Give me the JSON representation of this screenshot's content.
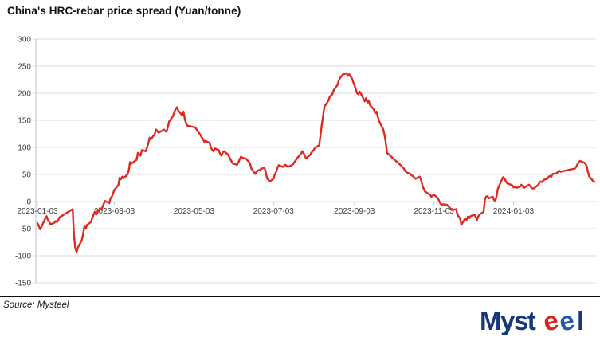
{
  "footer": {
    "source": "Source: Mysteel",
    "logo": {
      "prefix": "Myst",
      "e1": "e",
      "e2": "e",
      "suffix": "l"
    }
  },
  "colors": {
    "line": "#e02820",
    "grid": "#dcdcdc",
    "axis": "#c2c2c2",
    "tick_text": "#3f3f3f",
    "title_text": "#111111",
    "rule": "#0a0a0a",
    "logo_navy": "#16377e",
    "logo_blue": "#1f5aa8",
    "logo_red": "#d7261d"
  },
  "chart_data": {
    "type": "line",
    "title": "China's HRC-rebar price spread (Yuan/tonne)",
    "xlabel": "",
    "ylabel": "",
    "ylim": [
      -150,
      300
    ],
    "y_ticks": [
      300,
      250,
      200,
      150,
      100,
      50,
      0,
      -50,
      -100,
      -150
    ],
    "x_ticks": [
      "2023-01-03",
      "2023-03-03",
      "2023-05-03",
      "2023-07-03",
      "2023-09-03",
      "2023-11-03",
      "2024-01-03"
    ],
    "x_range": [
      "2023-01-03",
      "2024-03-05"
    ],
    "grid": "horizontal",
    "legend": "none",
    "series": [
      {
        "name": "HRC-rebar price spread",
        "color": "#e02820",
        "points": [
          [
            "2023-01-03",
            -40
          ],
          [
            "2023-01-04",
            -45
          ],
          [
            "2023-01-05",
            -51
          ],
          [
            "2023-01-06",
            -47
          ],
          [
            "2023-01-09",
            -31
          ],
          [
            "2023-01-10",
            -27
          ],
          [
            "2023-01-11",
            -34
          ],
          [
            "2023-01-12",
            -37
          ],
          [
            "2023-01-13",
            -42
          ],
          [
            "2023-01-16",
            -39
          ],
          [
            "2023-01-17",
            -36
          ],
          [
            "2023-01-18",
            -38
          ],
          [
            "2023-01-19",
            -34
          ],
          [
            "2023-01-20",
            -29
          ],
          [
            "2023-01-30",
            -14
          ],
          [
            "2023-01-31",
            -62
          ],
          [
            "2023-02-01",
            -86
          ],
          [
            "2023-02-02",
            -93
          ],
          [
            "2023-02-03",
            -85
          ],
          [
            "2023-02-06",
            -71
          ],
          [
            "2023-02-07",
            -60
          ],
          [
            "2023-02-08",
            -46
          ],
          [
            "2023-02-09",
            -50
          ],
          [
            "2023-02-10",
            -43
          ],
          [
            "2023-02-13",
            -38
          ],
          [
            "2023-02-14",
            -30
          ],
          [
            "2023-02-15",
            -24
          ],
          [
            "2023-02-16",
            -19
          ],
          [
            "2023-02-17",
            -24
          ],
          [
            "2023-02-20",
            -12
          ],
          [
            "2023-02-21",
            -15
          ],
          [
            "2023-02-22",
            -9
          ],
          [
            "2023-02-23",
            -3
          ],
          [
            "2023-02-24",
            1
          ],
          [
            "2023-02-27",
            -3
          ],
          [
            "2023-02-28",
            6
          ],
          [
            "2023-03-01",
            9
          ],
          [
            "2023-03-02",
            15
          ],
          [
            "2023-03-03",
            22
          ],
          [
            "2023-03-06",
            30
          ],
          [
            "2023-03-07",
            44
          ],
          [
            "2023-03-08",
            41
          ],
          [
            "2023-03-09",
            46
          ],
          [
            "2023-03-10",
            43
          ],
          [
            "2023-03-13",
            50
          ],
          [
            "2023-03-14",
            58
          ],
          [
            "2023-03-15",
            73
          ],
          [
            "2023-03-16",
            70
          ],
          [
            "2023-03-17",
            72
          ],
          [
            "2023-03-20",
            77
          ],
          [
            "2023-03-21",
            90
          ],
          [
            "2023-03-22",
            87
          ],
          [
            "2023-03-23",
            85
          ],
          [
            "2023-03-24",
            95
          ],
          [
            "2023-03-27",
            93
          ],
          [
            "2023-03-28",
            100
          ],
          [
            "2023-03-29",
            107
          ],
          [
            "2023-03-30",
            118
          ],
          [
            "2023-03-31",
            115
          ],
          [
            "2023-04-03",
            125
          ],
          [
            "2023-04-04",
            133
          ],
          [
            "2023-04-06",
            127
          ],
          [
            "2023-04-10",
            133
          ],
          [
            "2023-04-11",
            130
          ],
          [
            "2023-04-12",
            129
          ],
          [
            "2023-04-13",
            138
          ],
          [
            "2023-04-14",
            148
          ],
          [
            "2023-04-17",
            158
          ],
          [
            "2023-04-18",
            166
          ],
          [
            "2023-04-19",
            171
          ],
          [
            "2023-04-20",
            174
          ],
          [
            "2023-04-21",
            168
          ],
          [
            "2023-04-24",
            159
          ],
          [
            "2023-04-25",
            166
          ],
          [
            "2023-04-26",
            152
          ],
          [
            "2023-04-27",
            144
          ],
          [
            "2023-04-28",
            140
          ],
          [
            "2023-05-04",
            137
          ],
          [
            "2023-05-05",
            133
          ],
          [
            "2023-05-08",
            123
          ],
          [
            "2023-05-09",
            118
          ],
          [
            "2023-05-10",
            115
          ],
          [
            "2023-05-11",
            110
          ],
          [
            "2023-05-12",
            112
          ],
          [
            "2023-05-15",
            108
          ],
          [
            "2023-05-16",
            100
          ],
          [
            "2023-05-17",
            95
          ],
          [
            "2023-05-18",
            93
          ],
          [
            "2023-05-19",
            98
          ],
          [
            "2023-05-22",
            95
          ],
          [
            "2023-05-23",
            88
          ],
          [
            "2023-05-24",
            85
          ],
          [
            "2023-05-25",
            90
          ],
          [
            "2023-05-26",
            93
          ],
          [
            "2023-05-29",
            87
          ],
          [
            "2023-05-30",
            83
          ],
          [
            "2023-05-31",
            78
          ],
          [
            "2023-06-01",
            73
          ],
          [
            "2023-06-02",
            70
          ],
          [
            "2023-06-05",
            68
          ],
          [
            "2023-06-06",
            72
          ],
          [
            "2023-06-07",
            78
          ],
          [
            "2023-06-08",
            83
          ],
          [
            "2023-06-09",
            81
          ],
          [
            "2023-06-12",
            79
          ],
          [
            "2023-06-13",
            76
          ],
          [
            "2023-06-14",
            74
          ],
          [
            "2023-06-15",
            70
          ],
          [
            "2023-06-16",
            61
          ],
          [
            "2023-06-19",
            51
          ],
          [
            "2023-06-20",
            55
          ],
          [
            "2023-06-21",
            57
          ],
          [
            "2023-06-26",
            63
          ],
          [
            "2023-06-27",
            55
          ],
          [
            "2023-06-28",
            43
          ],
          [
            "2023-06-29",
            40
          ],
          [
            "2023-06-30",
            37
          ],
          [
            "2023-07-03",
            42
          ],
          [
            "2023-07-04",
            50
          ],
          [
            "2023-07-05",
            55
          ],
          [
            "2023-07-06",
            62
          ],
          [
            "2023-07-07",
            67
          ],
          [
            "2023-07-10",
            64
          ],
          [
            "2023-07-11",
            66
          ],
          [
            "2023-07-12",
            68
          ],
          [
            "2023-07-13",
            66
          ],
          [
            "2023-07-14",
            64
          ],
          [
            "2023-07-17",
            67
          ],
          [
            "2023-07-18",
            69
          ],
          [
            "2023-07-19",
            73
          ],
          [
            "2023-07-20",
            76
          ],
          [
            "2023-07-21",
            80
          ],
          [
            "2023-07-24",
            88
          ],
          [
            "2023-07-25",
            93
          ],
          [
            "2023-07-26",
            90
          ],
          [
            "2023-07-27",
            84
          ],
          [
            "2023-07-28",
            80
          ],
          [
            "2023-07-31",
            86
          ],
          [
            "2023-08-01",
            90
          ],
          [
            "2023-08-02",
            93
          ],
          [
            "2023-08-03",
            96
          ],
          [
            "2023-08-04",
            100
          ],
          [
            "2023-08-07",
            104
          ],
          [
            "2023-08-08",
            122
          ],
          [
            "2023-08-09",
            142
          ],
          [
            "2023-08-10",
            158
          ],
          [
            "2023-08-11",
            175
          ],
          [
            "2023-08-14",
            186
          ],
          [
            "2023-08-15",
            193
          ],
          [
            "2023-08-16",
            196
          ],
          [
            "2023-08-17",
            198
          ],
          [
            "2023-08-18",
            205
          ],
          [
            "2023-08-21",
            215
          ],
          [
            "2023-08-22",
            223
          ],
          [
            "2023-08-23",
            228
          ],
          [
            "2023-08-24",
            231
          ],
          [
            "2023-08-25",
            234
          ],
          [
            "2023-08-28",
            237
          ],
          [
            "2023-08-29",
            232
          ],
          [
            "2023-08-30",
            235
          ],
          [
            "2023-08-31",
            231
          ],
          [
            "2023-09-01",
            228
          ],
          [
            "2023-09-04",
            208
          ],
          [
            "2023-09-05",
            200
          ],
          [
            "2023-09-06",
            198
          ],
          [
            "2023-09-07",
            203
          ],
          [
            "2023-09-08",
            199
          ],
          [
            "2023-09-11",
            185
          ],
          [
            "2023-09-12",
            191
          ],
          [
            "2023-09-13",
            183
          ],
          [
            "2023-09-14",
            186
          ],
          [
            "2023-09-15",
            178
          ],
          [
            "2023-09-18",
            170
          ],
          [
            "2023-09-19",
            163
          ],
          [
            "2023-09-20",
            166
          ],
          [
            "2023-09-21",
            156
          ],
          [
            "2023-09-22",
            148
          ],
          [
            "2023-09-25",
            134
          ],
          [
            "2023-09-26",
            124
          ],
          [
            "2023-09-27",
            110
          ],
          [
            "2023-09-28",
            90
          ],
          [
            "2023-10-09",
            66
          ],
          [
            "2023-10-10",
            63
          ],
          [
            "2023-10-11",
            61
          ],
          [
            "2023-10-12",
            56
          ],
          [
            "2023-10-13",
            54
          ],
          [
            "2023-10-16",
            51
          ],
          [
            "2023-10-17",
            48
          ],
          [
            "2023-10-18",
            47
          ],
          [
            "2023-10-19",
            44
          ],
          [
            "2023-10-20",
            42
          ],
          [
            "2023-10-23",
            46
          ],
          [
            "2023-10-24",
            41
          ],
          [
            "2023-10-25",
            31
          ],
          [
            "2023-10-26",
            24
          ],
          [
            "2023-10-27",
            19
          ],
          [
            "2023-10-30",
            14
          ],
          [
            "2023-10-31",
            13
          ],
          [
            "2023-11-01",
            9
          ],
          [
            "2023-11-02",
            11
          ],
          [
            "2023-11-03",
            13
          ],
          [
            "2023-11-06",
            6
          ],
          [
            "2023-11-07",
            1
          ],
          [
            "2023-11-08",
            -4
          ],
          [
            "2023-11-09",
            -6
          ],
          [
            "2023-11-10",
            -5
          ],
          [
            "2023-11-13",
            -6
          ],
          [
            "2023-11-14",
            -9
          ],
          [
            "2023-11-15",
            -11
          ],
          [
            "2023-11-16",
            -14
          ],
          [
            "2023-11-17",
            -16
          ],
          [
            "2023-11-20",
            -14
          ],
          [
            "2023-11-21",
            -24
          ],
          [
            "2023-11-22",
            -28
          ],
          [
            "2023-11-23",
            -31
          ],
          [
            "2023-11-24",
            -43
          ],
          [
            "2023-11-27",
            -31
          ],
          [
            "2023-11-28",
            -34
          ],
          [
            "2023-11-29",
            -28
          ],
          [
            "2023-11-30",
            -31
          ],
          [
            "2023-12-01",
            -27
          ],
          [
            "2023-12-04",
            -24
          ],
          [
            "2023-12-05",
            -28
          ],
          [
            "2023-12-06",
            -34
          ],
          [
            "2023-12-07",
            -27
          ],
          [
            "2023-12-08",
            -24
          ],
          [
            "2023-12-11",
            -19
          ],
          [
            "2023-12-12",
            3
          ],
          [
            "2023-12-13",
            9
          ],
          [
            "2023-12-14",
            10
          ],
          [
            "2023-12-15",
            6
          ],
          [
            "2023-12-18",
            9
          ],
          [
            "2023-12-19",
            3
          ],
          [
            "2023-12-20",
            1
          ],
          [
            "2023-12-21",
            10
          ],
          [
            "2023-12-22",
            24
          ],
          [
            "2023-12-25",
            40
          ],
          [
            "2023-12-26",
            45
          ],
          [
            "2023-12-27",
            43
          ],
          [
            "2023-12-28",
            38
          ],
          [
            "2023-12-29",
            34
          ],
          [
            "2024-01-02",
            30
          ],
          [
            "2024-01-03",
            26
          ],
          [
            "2024-01-04",
            28
          ],
          [
            "2024-01-05",
            25
          ],
          [
            "2024-01-08",
            28
          ],
          [
            "2024-01-09",
            31
          ],
          [
            "2024-01-10",
            28
          ],
          [
            "2024-01-11",
            25
          ],
          [
            "2024-01-12",
            27
          ],
          [
            "2024-01-15",
            31
          ],
          [
            "2024-01-16",
            28
          ],
          [
            "2024-01-17",
            25
          ],
          [
            "2024-01-18",
            24
          ],
          [
            "2024-01-19",
            25
          ],
          [
            "2024-01-22",
            31
          ],
          [
            "2024-01-23",
            36
          ],
          [
            "2024-01-24",
            37
          ],
          [
            "2024-01-25",
            36
          ],
          [
            "2024-01-26",
            40
          ],
          [
            "2024-01-29",
            42
          ],
          [
            "2024-01-30",
            46
          ],
          [
            "2024-01-31",
            47
          ],
          [
            "2024-02-01",
            46
          ],
          [
            "2024-02-02",
            51
          ],
          [
            "2024-02-05",
            52
          ],
          [
            "2024-02-06",
            55
          ],
          [
            "2024-02-07",
            57
          ],
          [
            "2024-02-08",
            55
          ],
          [
            "2024-02-19",
            61
          ],
          [
            "2024-02-20",
            64
          ],
          [
            "2024-02-21",
            69
          ],
          [
            "2024-02-22",
            73
          ],
          [
            "2024-02-23",
            75
          ],
          [
            "2024-02-26",
            72
          ],
          [
            "2024-02-27",
            70
          ],
          [
            "2024-02-28",
            66
          ],
          [
            "2024-02-29",
            55
          ],
          [
            "2024-03-01",
            46
          ],
          [
            "2024-03-04",
            38
          ],
          [
            "2024-03-05",
            36
          ]
        ]
      }
    ]
  }
}
